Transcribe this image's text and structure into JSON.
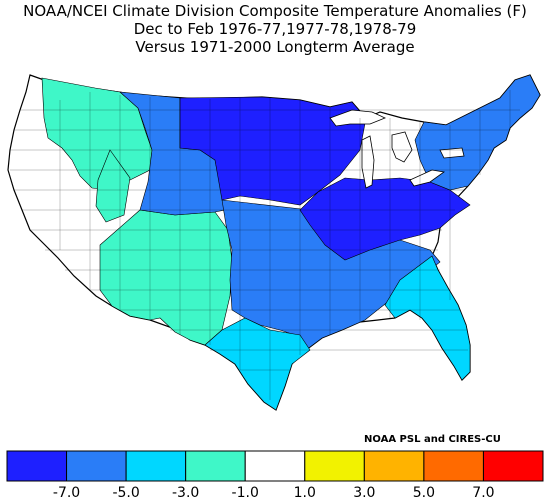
{
  "title": {
    "line1": "NOAA/NCEI Climate Division Composite Temperature Anomalies (F)",
    "line2": "Dec to Feb  1976-77,1977-78,1978-79",
    "line3": "Versus 1971-2000 Longterm Average"
  },
  "credit": "NOAA PSL and CIRES-CU",
  "legend": {
    "bins": [
      {
        "color": "#1e20ff"
      },
      {
        "color": "#2a7df7"
      },
      {
        "color": "#00d7ff"
      },
      {
        "color": "#3ff7c8"
      },
      {
        "color": "#ffffff"
      },
      {
        "color": "#f2f200"
      },
      {
        "color": "#ffb300"
      },
      {
        "color": "#ff6a00"
      },
      {
        "color": "#ff0000"
      }
    ],
    "tick_labels": [
      "-7.0",
      "-5.0",
      "-3.0",
      "-1.0",
      "1.0",
      "3.0",
      "5.0",
      "7.0"
    ]
  },
  "map_regions": [
    {
      "name": "northern-plains-upper-midwest",
      "color": "#1e20ff"
    },
    {
      "name": "ohio-valley-great-lakes",
      "color": "#1e20ff"
    },
    {
      "name": "southern-plains-gulf",
      "color": "#2a7df7"
    },
    {
      "name": "southeast-atlantic",
      "color": "#00d7ff"
    },
    {
      "name": "southwest-desert",
      "color": "#3ff7c8"
    },
    {
      "name": "far-west-great-basin",
      "color": "#ffffff"
    },
    {
      "name": "pacific-northwest",
      "color": "#3ff7c8"
    }
  ]
}
